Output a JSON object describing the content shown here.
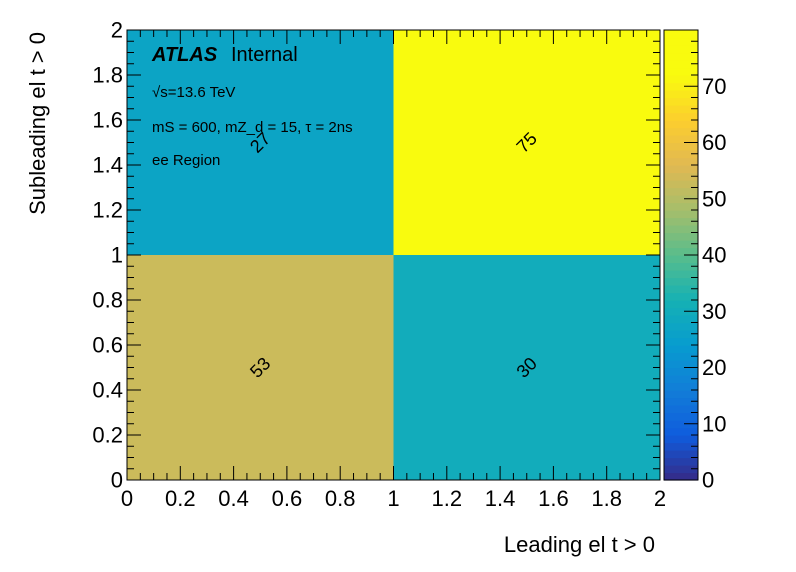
{
  "chart_data": {
    "type": "heatmap",
    "xlabel": "Leading el t > 0",
    "ylabel": "Subleading el t > 0",
    "xlim": [
      0,
      2
    ],
    "ylim": [
      0,
      2
    ],
    "x_bin_edges": [
      0,
      1,
      2
    ],
    "y_bin_edges": [
      0,
      1,
      2
    ],
    "cells": [
      {
        "x": [
          0,
          1
        ],
        "y": [
          0,
          1
        ],
        "value": 53,
        "label": "53"
      },
      {
        "x": [
          1,
          2
        ],
        "y": [
          0,
          1
        ],
        "value": 30,
        "label": "30"
      },
      {
        "x": [
          0,
          1
        ],
        "y": [
          1,
          2
        ],
        "value": 27,
        "label": "27"
      },
      {
        "x": [
          1,
          2
        ],
        "y": [
          1,
          2
        ],
        "value": 75,
        "label": "75"
      }
    ],
    "x_ticks": [
      "0",
      "0.2",
      "0.4",
      "0.6",
      "0.8",
      "1",
      "1.2",
      "1.4",
      "1.6",
      "1.8",
      "2"
    ],
    "y_ticks": [
      "0",
      "0.2",
      "0.4",
      "0.6",
      "0.8",
      "1",
      "1.2",
      "1.4",
      "1.6",
      "1.8",
      "2"
    ],
    "colorbar": {
      "range": [
        0,
        80
      ],
      "tick_values": [
        0,
        10,
        20,
        30,
        40,
        50,
        60,
        70
      ],
      "tick_labels": [
        "0",
        "10",
        "20",
        "30",
        "40",
        "50",
        "60",
        "70"
      ],
      "colormap": "viridis-like"
    },
    "annotations": {
      "experiment": "ATLAS",
      "status": "Internal",
      "energy": "√s=13.6 TeV",
      "parameters": "mS = 600, mZ_d = 15, τ = 2ns",
      "region": "ee Region"
    },
    "grid": false,
    "legend": "none"
  },
  "colors": {
    "text": "#000000",
    "frame": "#000000"
  }
}
